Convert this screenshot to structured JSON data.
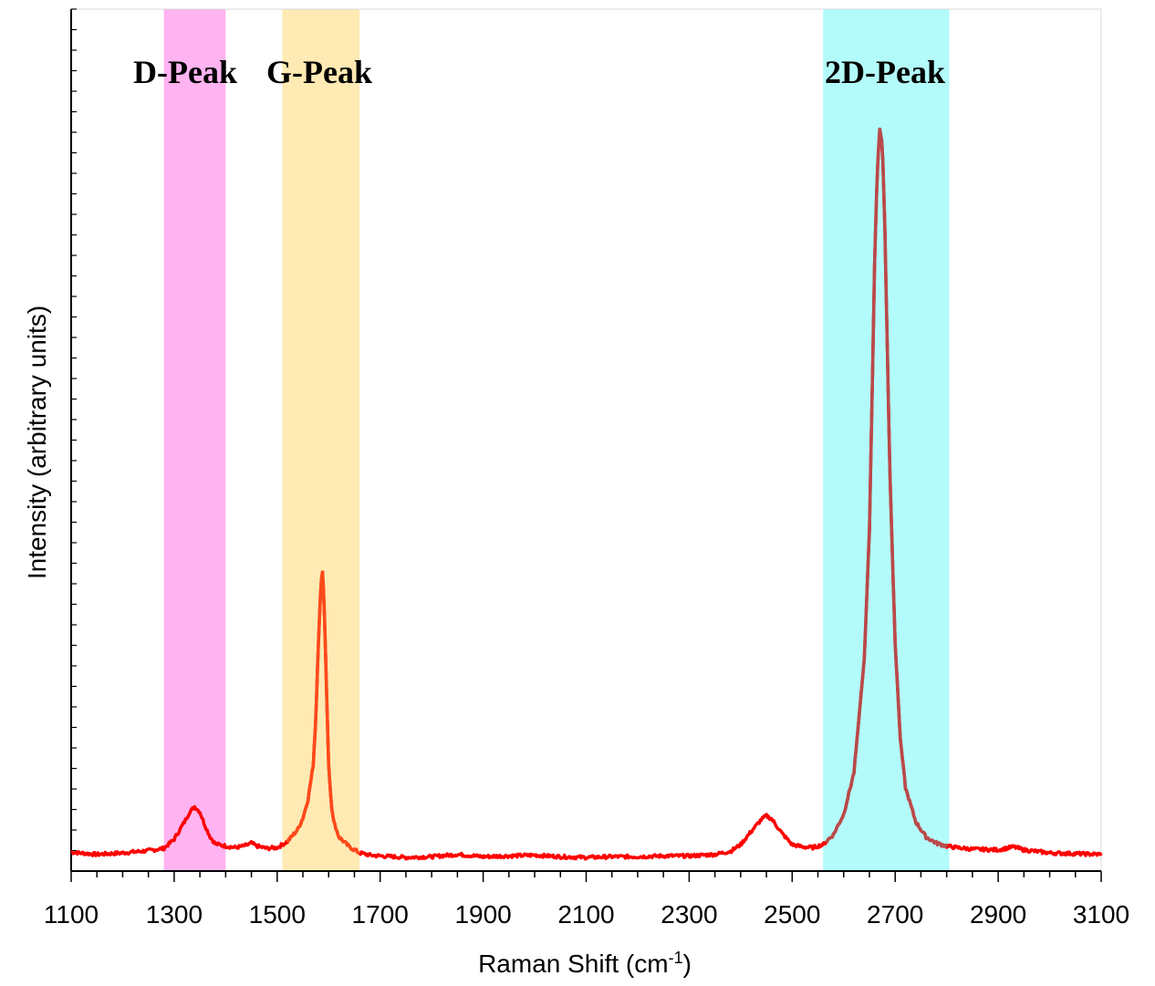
{
  "chart_data": {
    "type": "line",
    "title": "",
    "xlabel": "Raman Shift (cm",
    "xlabel_superscript": "-1",
    "xlabel_suffix": ")",
    "ylabel": "Intensity (arbitrary units)",
    "xlim": [
      1100,
      3100
    ],
    "ylim": [
      0,
      100
    ],
    "x_ticks": [
      1100,
      1300,
      1500,
      1700,
      1900,
      2100,
      2300,
      2500,
      2700,
      2900,
      3100
    ],
    "x_minor_step": 50,
    "y_minor_count": 42,
    "grid": false,
    "bands": [
      {
        "label": "D-Peak",
        "from": 1280,
        "to": 1400,
        "color": "#ffb3f0"
      },
      {
        "label": "G-Peak",
        "from": 1510,
        "to": 1660,
        "color": "#ffeab3"
      },
      {
        "label": "2D-Peak",
        "from": 2560,
        "to": 2805,
        "color": "#b3fbfb"
      }
    ],
    "series": [
      {
        "color": "#ff0000",
        "highlight_colors": {
          "g": "#ff4a1a",
          "2d": "#b84a4a"
        },
        "x": [
          1100,
          1150,
          1200,
          1250,
          1280,
          1300,
          1320,
          1330,
          1340,
          1350,
          1360,
          1370,
          1380,
          1400,
          1420,
          1440,
          1450,
          1460,
          1480,
          1500,
          1520,
          1540,
          1550,
          1560,
          1570,
          1575,
          1580,
          1585,
          1588,
          1591,
          1595,
          1600,
          1605,
          1610,
          1620,
          1640,
          1660,
          1680,
          1700,
          1750,
          1800,
          1850,
          1900,
          1950,
          2000,
          2050,
          2100,
          2150,
          2200,
          2250,
          2300,
          2350,
          2380,
          2400,
          2420,
          2440,
          2450,
          2460,
          2480,
          2500,
          2520,
          2540,
          2560,
          2580,
          2600,
          2620,
          2640,
          2650,
          2655,
          2660,
          2665,
          2670,
          2675,
          2680,
          2685,
          2690,
          2700,
          2710,
          2720,
          2740,
          2760,
          2780,
          2800,
          2820,
          2850,
          2900,
          2930,
          2950,
          3000,
          3050,
          3100
        ],
        "y": [
          2.5,
          2.2,
          2.4,
          2.7,
          3.0,
          4.2,
          6.5,
          7.8,
          8.5,
          7.8,
          6.0,
          4.5,
          3.6,
          3.3,
          3.1,
          3.4,
          3.7,
          3.3,
          3.0,
          3.1,
          3.9,
          5.5,
          7.0,
          9.5,
          14.0,
          20.0,
          30.0,
          38.0,
          39.5,
          36.0,
          26.0,
          14.0,
          9.0,
          6.5,
          4.5,
          3.2,
          2.4,
          2.1,
          2.0,
          1.8,
          1.9,
          2.2,
          1.9,
          2.0,
          2.1,
          1.9,
          1.8,
          1.9,
          1.9,
          2.0,
          2.0,
          2.2,
          2.6,
          3.5,
          5.2,
          6.8,
          7.3,
          6.9,
          5.0,
          3.5,
          3.2,
          3.1,
          3.5,
          4.8,
          7.5,
          13.0,
          28.0,
          45.0,
          62.0,
          80.0,
          92.0,
          98.0,
          96.0,
          85.0,
          68.0,
          52.0,
          30.0,
          17.5,
          11.0,
          6.5,
          4.5,
          3.7,
          3.3,
          3.1,
          2.9,
          2.8,
          3.2,
          2.8,
          2.4,
          2.3,
          2.2
        ]
      }
    ]
  }
}
